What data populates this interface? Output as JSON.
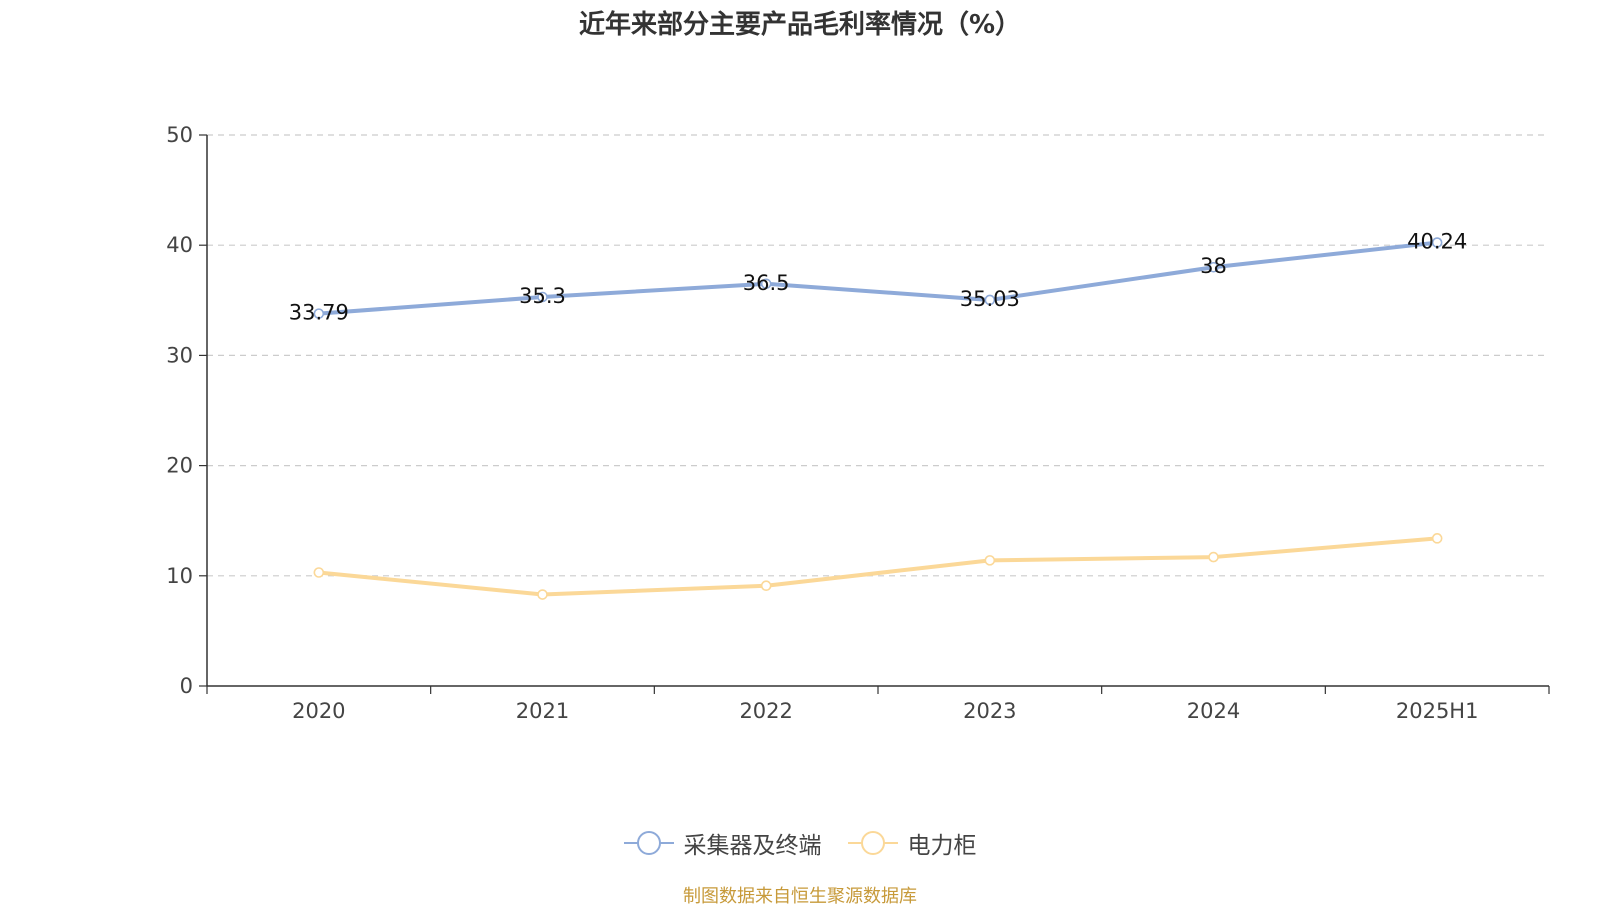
{
  "chart_data": {
    "type": "line",
    "title": "近年来部分主要产品毛利率情况（%）",
    "categories": [
      "2020",
      "2021",
      "2022",
      "2023",
      "2024",
      "2025H1"
    ],
    "series": [
      {
        "name": "采集器及终端",
        "values": [
          33.79,
          35.3,
          36.5,
          35.03,
          38,
          40.24
        ],
        "color": "#8eaad9",
        "show_labels": true
      },
      {
        "name": "电力柜",
        "values": [
          10.3,
          8.3,
          9.1,
          11.4,
          11.7,
          13.4
        ],
        "color": "#fbd898",
        "show_labels": false
      }
    ],
    "ylim": [
      0,
      50
    ],
    "yticks": [
      0,
      10,
      20,
      30,
      40,
      50
    ],
    "grid": true,
    "legend_position": "bottom-center"
  },
  "source_note": "制图数据来自恒生聚源数据库"
}
